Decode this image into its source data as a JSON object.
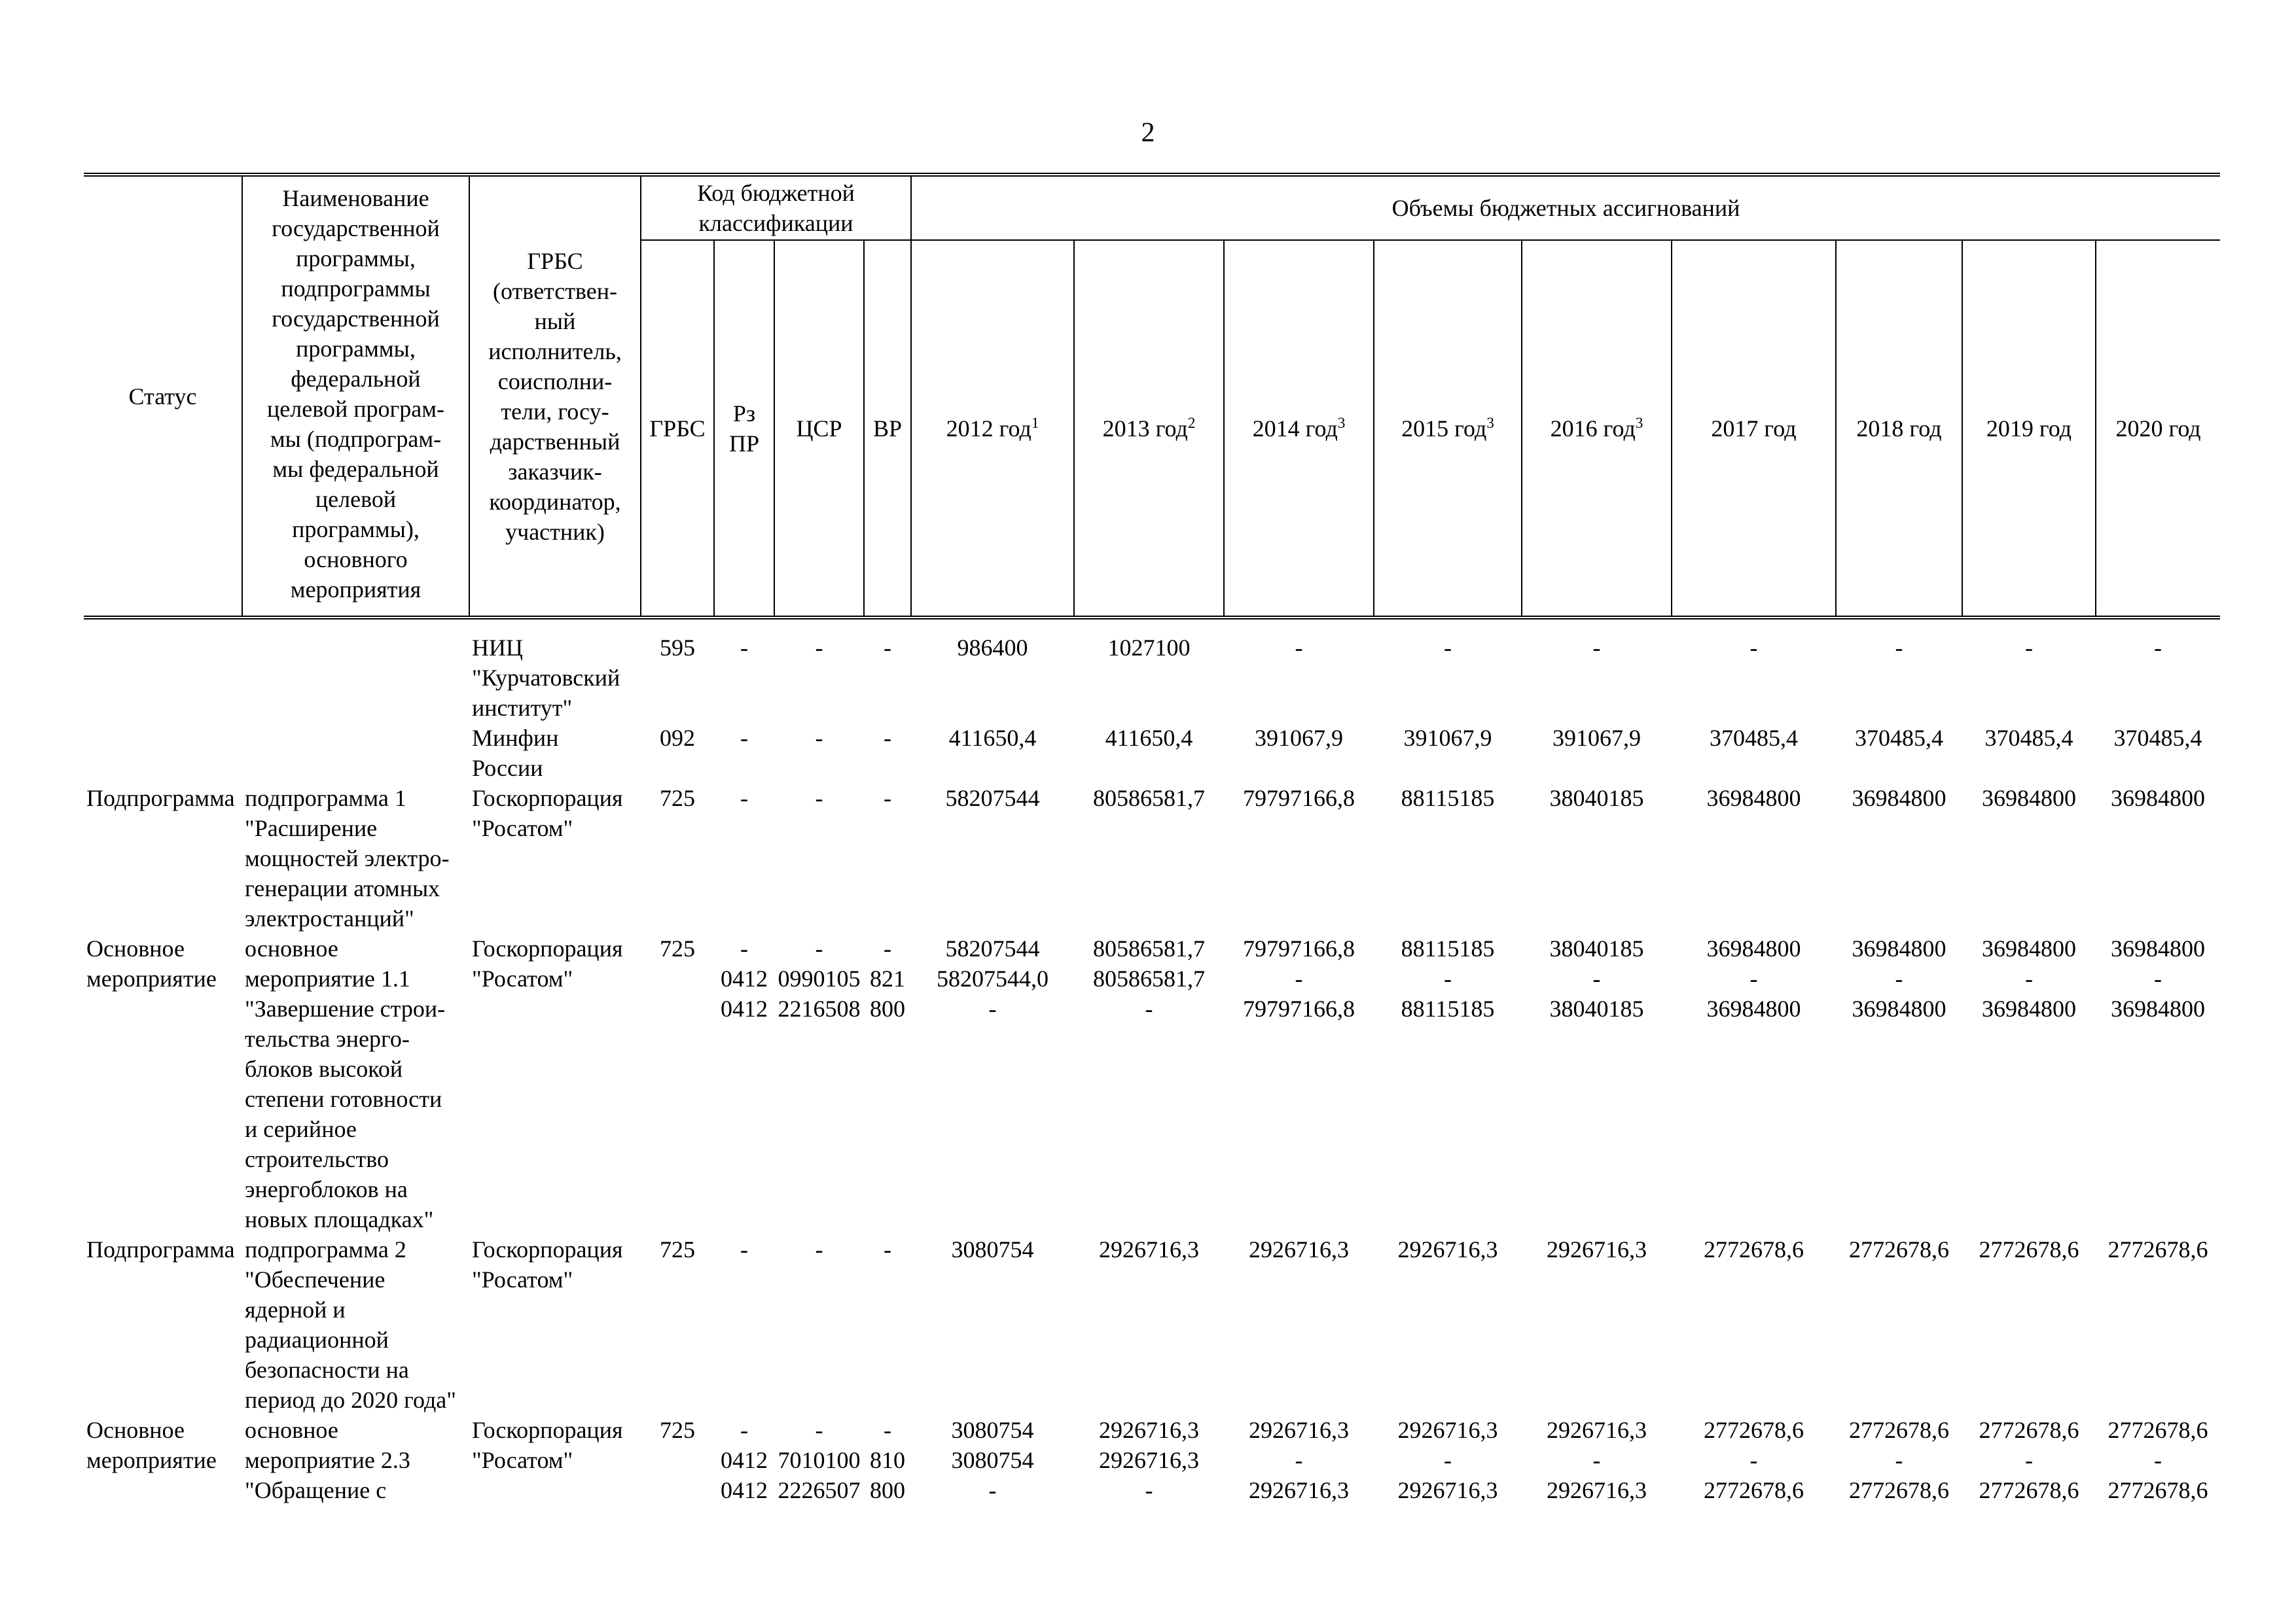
{
  "page": {
    "number": "2"
  },
  "table": {
    "header": {
      "status": "Статус",
      "name": "Наименование\nгосударственной\nпрограммы,\nподпрограммы\nгосударственной\nпрограммы,\nфедеральной\nцелевой програм-\nмы (подпрограм-\nмы федеральной\nцелевой\nпрограммы),\nосновного\nмероприятия",
      "executor": "ГРБС\n(ответствен-\nный\nисполнитель,\nсоисполни-\nтели, госу-\nдарственный\nзаказчик-\nкоординатор,\nучастник)",
      "code_group": "Код бюджетной классификации",
      "volumes_group": "Объемы бюджетных ассигнований",
      "code_columns": [
        "ГРБС",
        "Рз\nПР",
        "ЦСР",
        "ВР"
      ],
      "year_columns": [
        {
          "label": "2012 год",
          "sup": "1"
        },
        {
          "label": "2013 год",
          "sup": "2"
        },
        {
          "label": "2014 год",
          "sup": "3"
        },
        {
          "label": "2015 год",
          "sup": "3"
        },
        {
          "label": "2016 год",
          "sup": "3"
        },
        {
          "label": "2017 год",
          "sup": ""
        },
        {
          "label": "2018 год",
          "sup": ""
        },
        {
          "label": "2019 год",
          "sup": ""
        },
        {
          "label": "2020 год",
          "sup": ""
        }
      ]
    },
    "rows": [
      {
        "status": "",
        "name": "",
        "executor": "НИЦ\n\"Курчатовский\nинститут\"",
        "lines": [
          {
            "grbs": "595",
            "rzpr": "-",
            "csr": "-",
            "vr": "-",
            "years": [
              "986400",
              "1027100",
              "-",
              "-",
              "-",
              "-",
              "-",
              "-",
              "-"
            ]
          }
        ]
      },
      {
        "status": "",
        "name": "",
        "executor": "Минфин\nРоссии",
        "lines": [
          {
            "grbs": "092",
            "rzpr": "-",
            "csr": "-",
            "vr": "-",
            "years": [
              "411650,4",
              "411650,4",
              "391067,9",
              "391067,9",
              "391067,9",
              "370485,4",
              "370485,4",
              "370485,4",
              "370485,4"
            ]
          }
        ]
      },
      {
        "status": "Подпрограмма",
        "name": "подпрограмма 1\n\"Расширение\nмощностей электро-\nгенерации атомных\nэлектростанций\"",
        "executor": "Госкорпорация\n\"Росатом\"",
        "lines": [
          {
            "grbs": "725",
            "rzpr": "-",
            "csr": "-",
            "vr": "-",
            "years": [
              "58207544",
              "80586581,7",
              "79797166,8",
              "88115185",
              "38040185",
              "36984800",
              "36984800",
              "36984800",
              "36984800"
            ]
          }
        ]
      },
      {
        "status": "Основное\nмероприятие",
        "name": "основное\nмероприятие 1.1\n\"Завершение строи-\nтельства энерго-\nблоков высокой\nстепени готовности\nи серийное\nстроительство\nэнергоблоков на\nновых площадках\"",
        "executor": "Госкорпорация\n\"Росатом\"",
        "lines": [
          {
            "grbs": "725",
            "rzpr": "-",
            "csr": "-",
            "vr": "-",
            "years": [
              "58207544",
              "80586581,7",
              "79797166,8",
              "88115185",
              "38040185",
              "36984800",
              "36984800",
              "36984800",
              "36984800"
            ]
          },
          {
            "grbs": "",
            "rzpr": "0412",
            "csr": "0990105",
            "vr": "821",
            "years": [
              "58207544,0",
              "80586581,7",
              "-",
              "-",
              "-",
              "-",
              "-",
              "-",
              "-"
            ]
          },
          {
            "grbs": "",
            "rzpr": "0412",
            "csr": "2216508",
            "vr": "800",
            "years": [
              "-",
              "-",
              "79797166,8",
              "88115185",
              "38040185",
              "36984800",
              "36984800",
              "36984800",
              "36984800"
            ]
          }
        ]
      },
      {
        "status": "Подпрограмма",
        "name": "подпрограмма 2\n\"Обеспечение\nядерной и\nрадиационной\nбезопасности на\nпериод до 2020 года\"",
        "executor": "Госкорпорация\n\"Росатом\"",
        "lines": [
          {
            "grbs": "725",
            "rzpr": "-",
            "csr": "-",
            "vr": "-",
            "years": [
              "3080754",
              "2926716,3",
              "2926716,3",
              "2926716,3",
              "2926716,3",
              "2772678,6",
              "2772678,6",
              "2772678,6",
              "2772678,6"
            ]
          }
        ]
      },
      {
        "status": "Основное\nмероприятие",
        "name": "основное\nмероприятие 2.3\n\"Обращение с",
        "executor": "Госкорпорация\n\"Росатом\"",
        "lines": [
          {
            "grbs": "725",
            "rzpr": "-",
            "csr": "-",
            "vr": "-",
            "years": [
              "3080754",
              "2926716,3",
              "2926716,3",
              "2926716,3",
              "2926716,3",
              "2772678,6",
              "2772678,6",
              "2772678,6",
              "2772678,6"
            ]
          },
          {
            "grbs": "",
            "rzpr": "0412",
            "csr": "7010100",
            "vr": "810",
            "years": [
              "3080754",
              "2926716,3",
              "-",
              "-",
              "-",
              "-",
              "-",
              "-",
              "-"
            ]
          },
          {
            "grbs": "",
            "rzpr": "0412",
            "csr": "2226507",
            "vr": "800",
            "years": [
              "-",
              "-",
              "2926716,3",
              "2926716,3",
              "2926716,3",
              "2772678,6",
              "2772678,6",
              "2772678,6",
              "2772678,6"
            ]
          }
        ]
      }
    ]
  }
}
